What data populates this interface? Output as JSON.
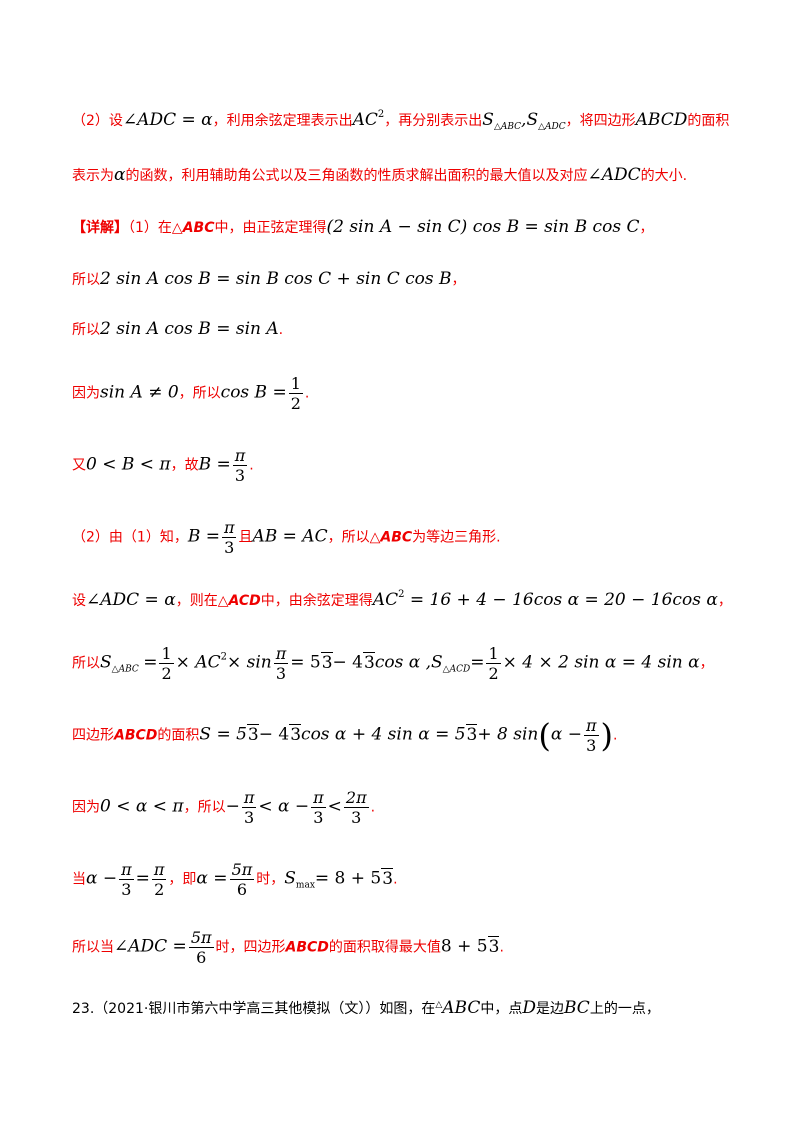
{
  "part2_hint": {
    "line1": {
      "p1": "（2）设",
      "m1": "∠ADC = α",
      "p2": "，利用余弦定理表示出",
      "m2": "AC",
      "m2_sup": "2",
      "p3": "，再分别表示出",
      "m3a": "S",
      "m3a_sub": "△ABC",
      "m3sep": ",",
      "m3b": "S",
      "m3b_sub": "△ADC",
      "p4": "，将四边形",
      "m4": "ABCD",
      "p5": "的面积"
    },
    "line2": {
      "p1": "表示为",
      "m1": "α",
      "p2": "的函数，利用辅助角公式以及三角函数的性质求解出面积的最大值以及对应",
      "m2": "∠ADC",
      "p3": "的大小."
    }
  },
  "solution": {
    "l1": {
      "tag": "【详解】",
      "p1": "（1）在△",
      "abc": "ABC",
      "p2": "中，由正弦定理得",
      "m": "(2 sin A − sin C) cos B = sin B cos C",
      "tail": "，"
    },
    "l2": {
      "p1": "所以",
      "m": "2 sin A cos B = sin B cos C + sin C cos B",
      "tail": "，"
    },
    "l3": {
      "p1": "所以",
      "m": "2 sin A cos B = sin A",
      "tail": "."
    },
    "l4": {
      "p1": "因为",
      "m1": "sin A ≠ 0",
      "p2": "，所以",
      "m2": "cos B =",
      "num": "1",
      "den": "2",
      "tail": "."
    },
    "l5": {
      "p1": "又",
      "m1": "0 < B < π",
      "p2": "，故",
      "m2": "B =",
      "num": "π",
      "den": "3",
      "tail": "."
    },
    "l6": {
      "p1": "（2）由（1）知，",
      "m1": "B =",
      "num": "π",
      "den": "3",
      "p2": "且",
      "m2": "AB = AC",
      "p3": "，所以△",
      "abc": "ABC",
      "p4": "为等边三角形."
    },
    "l7": {
      "p1": "设",
      "m1": "∠ADC = α",
      "p2": "，则在△",
      "acd": "ACD",
      "p3": "中，由余弦定理得",
      "m2": "AC",
      "m2sup": "2",
      "m2rest": " = 16 + 4 − 16cos α = 20 − 16cos α",
      "tail": "，"
    },
    "l8": {
      "p1": "所以",
      "s1": "S",
      "s1sub": "△ABC",
      "eq1": "=",
      "n1": "1",
      "d1": "2",
      "t1": "× AC",
      "t1sup": "2",
      "t2": "× sin",
      "n2": "π",
      "d2": "3",
      "t3": "= 5",
      "r1": "3",
      "t4": "− 4",
      "r2": "3",
      "t5": "cos α ,",
      "s2": "S",
      "s2sub": "△ACD",
      "eq2": "=",
      "n3": "1",
      "d3": "2",
      "t6": "× 4 × 2 sin α = 4 sin α",
      "tail": "，"
    },
    "l9": {
      "p1": "四边形",
      "abcd": "ABCD",
      "p2": "的面积",
      "t1": "S = 5",
      "r1": "3",
      "t2": "− 4",
      "r2": "3",
      "t3": "cos α + 4 sin α = 5",
      "r3": "3",
      "t4": "+ 8 sin",
      "lp": "(",
      "t5": "α −",
      "n": "π",
      "d": "3",
      "rp": ")",
      "tail": "."
    },
    "l10": {
      "p1": "因为",
      "m1": "0 < α < π",
      "p2": "，所以",
      "t1": "−",
      "n1": "π",
      "d1": "3",
      "t2": "< α −",
      "n2": "π",
      "d2": "3",
      "t3": "<",
      "n3": "2π",
      "d3": "3",
      "tail": "."
    },
    "l11": {
      "p1": "当",
      "t1": "α −",
      "n1": "π",
      "d1": "3",
      "t2": "=",
      "n2": "π",
      "d2": "2",
      "p2": "，即",
      "t3": "α =",
      "n3": "5π",
      "d3": "6",
      "p3": "时，",
      "smax": "S",
      "smaxsub": "max",
      "t4": "= 8 + 5",
      "r1": "3",
      "tail": "."
    },
    "l12": {
      "p1": "所以当",
      "t1": "∠ADC =",
      "n1": "5π",
      "d1": "6",
      "p2": "时，四边形",
      "abcd": "ABCD",
      "p3": "的面积取得最大值",
      "t2": "8 + 5",
      "r1": "3",
      "tail": "."
    }
  },
  "next_problem": {
    "p1": "23.（2021·银川市第六中学高三其他模拟（文））如图，在",
    "tri": "△",
    "m1": "ABC",
    "p2": "中，点",
    "m2": "D",
    "p3": "是边",
    "m3": "BC",
    "p4": "上的一点，"
  }
}
